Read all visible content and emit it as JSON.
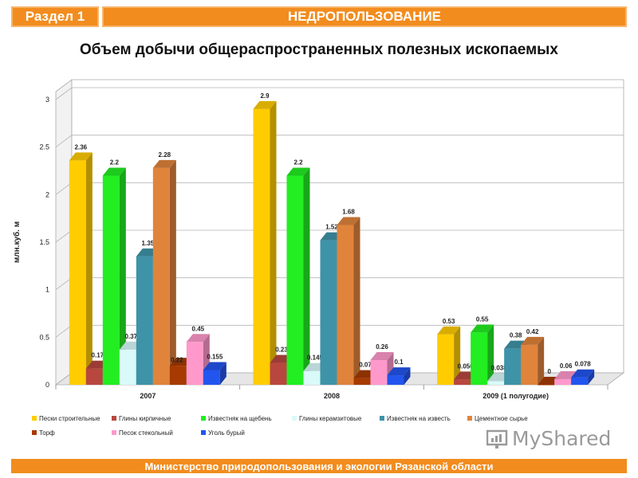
{
  "header": {
    "section_label": "Раздел 1",
    "topic": "НЕДРОПОЛЬЗОВАНИЕ"
  },
  "title": "Объем добычи общераспространенных полезных ископаемых",
  "footer": "Министерство природопользования и экологии Рязанской области",
  "watermark": "MyShared",
  "colors": {
    "header_orange": "#f28c1e"
  },
  "chart_data": {
    "type": "bar",
    "ylabel": "млн.куб. м",
    "ylim": [
      0,
      3
    ],
    "yticks": [
      "0",
      "0.5",
      "1",
      "1.5",
      "2",
      "2.5",
      "3"
    ],
    "categories": [
      "2007",
      "2008",
      "2009 (1 полугодие)"
    ],
    "legend_position": "bottom",
    "grid": true,
    "series": [
      {
        "name": "Пески строительные",
        "color": "#ffcc00",
        "values": [
          2.36,
          2.9,
          0.53
        ],
        "labels": [
          "2.36",
          "2.9",
          "0.53"
        ]
      },
      {
        "name": "Глины кирпичные",
        "color": "#b8473f",
        "values": [
          0.17,
          0.23,
          0.056
        ],
        "labels": [
          "0.17",
          "0.23",
          "0.056"
        ]
      },
      {
        "name": "Известняк на щебень",
        "color": "#22ee22",
        "values": [
          2.2,
          2.2,
          0.55
        ],
        "labels": [
          "2.2",
          "2.2",
          "0.55"
        ]
      },
      {
        "name": "Глины керамзитовые",
        "color": "#dafafa",
        "values": [
          0.37,
          0.145,
          0.038
        ],
        "labels": [
          "0.37",
          "0.145",
          "0.038"
        ]
      },
      {
        "name": "Известняк на известь",
        "color": "#3e93a8",
        "values": [
          1.35,
          1.52,
          0.38
        ],
        "labels": [
          "1.35",
          "1.52",
          "0.38"
        ]
      },
      {
        "name": "Цементное сырье",
        "color": "#e0843c",
        "values": [
          2.28,
          1.68,
          0.42
        ],
        "labels": [
          "2.28",
          "1.68",
          "0.42"
        ]
      },
      {
        "name": "Торф",
        "color": "#a63a00",
        "values": [
          0.2,
          0.07,
          0
        ],
        "labels": [
          "",
          "0.07",
          "0"
        ]
      },
      {
        "name": "Песок стекольный",
        "color": "#ff99cc",
        "values": [
          0.45,
          0.26,
          0.06
        ],
        "labels": [
          "0.45",
          "0.26",
          "0.06"
        ]
      },
      {
        "name": "Уголь бурый",
        "color": "#2255ee",
        "values": [
          0.155,
          0.1,
          0.078
        ],
        "labels": [
          "0.155",
          "0.1",
          "0.078"
        ]
      }
    ],
    "extra_labels": [
      {
        "text": "0.22"
      }
    ]
  }
}
